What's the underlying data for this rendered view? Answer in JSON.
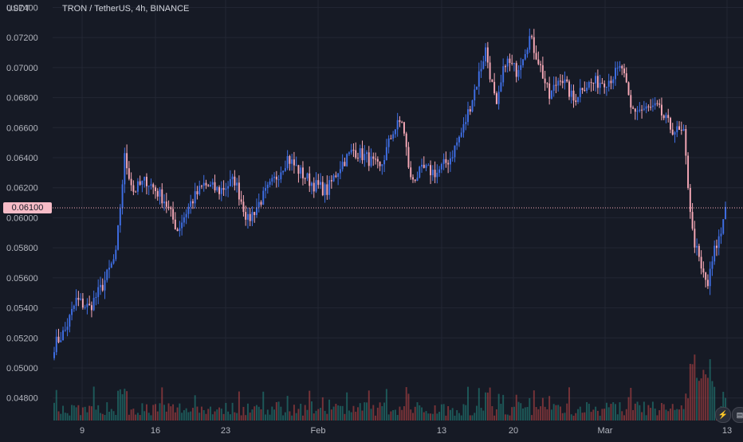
{
  "header": {
    "unit": "USDT",
    "symbol_title": "TRON / TetherUS, 4h, BINANCE"
  },
  "current_price": "0.06100",
  "icons": {
    "flash": "lightning-icon",
    "logo": "tradingview-logo-icon"
  },
  "colors": {
    "background": "#161a25",
    "up": "#3f6fe6",
    "down": "#f7a9b7",
    "grid": "#232734",
    "text": "#b2b5be"
  },
  "chart_data": {
    "type": "candlestick",
    "ylim": [
      0.0465,
      0.0745
    ],
    "y_ticks": [
      "0.07400",
      "0.07200",
      "0.07000",
      "0.06800",
      "0.06600",
      "0.06400",
      "0.06200",
      "0.06000",
      "0.05800",
      "0.05600",
      "0.05400",
      "0.05200",
      "0.05000",
      "0.04800"
    ],
    "x_ticks": [
      "9",
      "16",
      "23",
      "Feb",
      "13",
      "20",
      "Mar",
      "13"
    ],
    "grid": true,
    "current_price": 0.061,
    "key_points": [
      {
        "x": 0,
        "y": 0.0515
      },
      {
        "x": 5,
        "y": 0.0525
      },
      {
        "x": 10,
        "y": 0.0545
      },
      {
        "x": 16,
        "y": 0.054
      },
      {
        "x": 22,
        "y": 0.0555
      },
      {
        "x": 28,
        "y": 0.0575
      },
      {
        "x": 32,
        "y": 0.064
      },
      {
        "x": 36,
        "y": 0.0618
      },
      {
        "x": 42,
        "y": 0.0625
      },
      {
        "x": 50,
        "y": 0.0612
      },
      {
        "x": 56,
        "y": 0.0592
      },
      {
        "x": 62,
        "y": 0.061
      },
      {
        "x": 68,
        "y": 0.0622
      },
      {
        "x": 75,
        "y": 0.0618
      },
      {
        "x": 82,
        "y": 0.0625
      },
      {
        "x": 88,
        "y": 0.0598
      },
      {
        "x": 94,
        "y": 0.0612
      },
      {
        "x": 100,
        "y": 0.0625
      },
      {
        "x": 106,
        "y": 0.064
      },
      {
        "x": 112,
        "y": 0.063
      },
      {
        "x": 118,
        "y": 0.0622
      },
      {
        "x": 124,
        "y": 0.0618
      },
      {
        "x": 130,
        "y": 0.0635
      },
      {
        "x": 136,
        "y": 0.0645
      },
      {
        "x": 142,
        "y": 0.064
      },
      {
        "x": 148,
        "y": 0.0632
      },
      {
        "x": 154,
        "y": 0.0658
      },
      {
        "x": 158,
        "y": 0.0665
      },
      {
        "x": 162,
        "y": 0.0625
      },
      {
        "x": 168,
        "y": 0.0632
      },
      {
        "x": 174,
        "y": 0.063
      },
      {
        "x": 180,
        "y": 0.064
      },
      {
        "x": 186,
        "y": 0.066
      },
      {
        "x": 192,
        "y": 0.069
      },
      {
        "x": 196,
        "y": 0.0712
      },
      {
        "x": 201,
        "y": 0.0672
      },
      {
        "x": 205,
        "y": 0.0705
      },
      {
        "x": 210,
        "y": 0.0698
      },
      {
        "x": 216,
        "y": 0.072
      },
      {
        "x": 220,
        "y": 0.0705
      },
      {
        "x": 225,
        "y": 0.068
      },
      {
        "x": 230,
        "y": 0.0695
      },
      {
        "x": 236,
        "y": 0.0678
      },
      {
        "x": 240,
        "y": 0.0688
      },
      {
        "x": 246,
        "y": 0.069
      },
      {
        "x": 252,
        "y": 0.0692
      },
      {
        "x": 258,
        "y": 0.07
      },
      {
        "x": 262,
        "y": 0.0672
      },
      {
        "x": 268,
        "y": 0.0672
      },
      {
        "x": 274,
        "y": 0.0673
      },
      {
        "x": 280,
        "y": 0.066
      },
      {
        "x": 286,
        "y": 0.0655
      },
      {
        "x": 290,
        "y": 0.059
      },
      {
        "x": 294,
        "y": 0.0565
      },
      {
        "x": 297,
        "y": 0.0555
      },
      {
        "x": 300,
        "y": 0.0578
      },
      {
        "x": 303,
        "y": 0.059
      },
      {
        "x": 305,
        "y": 0.061
      }
    ],
    "candle_count": 306,
    "volume_ylim": [
      0,
      1
    ]
  }
}
